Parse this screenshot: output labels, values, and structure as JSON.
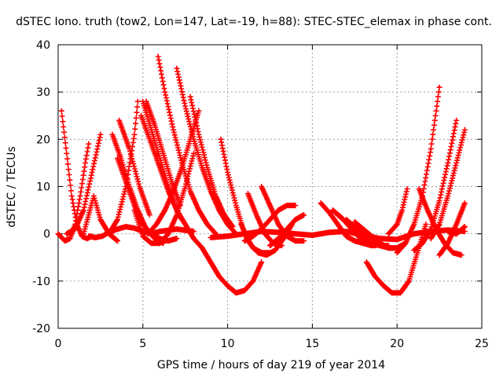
{
  "chart_data": {
    "type": "scatter",
    "title": "dSTEC Iono. truth (tow2, Lon=147, Lat=-19, h=88): STEC-STEC_elemax in phase cont.",
    "xlabel": "GPS time / hours of day 219 of year 2014",
    "ylabel": "dSTEC  / TECUs",
    "xlim": [
      0,
      25
    ],
    "ylim": [
      -20,
      40
    ],
    "x_ticks": [
      0,
      5,
      10,
      15,
      20,
      25
    ],
    "y_ticks": [
      -20,
      -10,
      0,
      10,
      20,
      30,
      40
    ],
    "x_tick_labels": [
      "0",
      "5",
      "10",
      "15",
      "20",
      "25"
    ],
    "y_tick_labels": [
      "-20",
      "-10",
      "0",
      "10",
      "20",
      "30",
      "40"
    ],
    "grid": true,
    "legend": "none",
    "marker": "plus",
    "color": "#ff0000",
    "series": [
      {
        "x": [
          0.2,
          0.5,
          0.8,
          1.1,
          1.4,
          1.7,
          2.0
        ],
        "y": [
          26,
          17,
          8,
          2,
          -0.5,
          -1,
          -0.5
        ]
      },
      {
        "x": [
          0.0,
          0.4,
          0.7,
          1.0,
          1.3,
          1.6,
          1.8
        ],
        "y": [
          0,
          -1.5,
          -1,
          2,
          8,
          15,
          19
        ]
      },
      {
        "x": [
          0.5,
          1.0,
          1.5,
          2.0,
          2.5
        ],
        "y": [
          0,
          1,
          5,
          13,
          21
        ]
      },
      {
        "x": [
          1.5,
          1.8,
          2.1,
          2.5,
          3.0,
          3.5
        ],
        "y": [
          0,
          4,
          8,
          3,
          0,
          -1.5
        ]
      },
      {
        "x": [
          1.8,
          2.2,
          2.6,
          3.0,
          3.5,
          4.0,
          4.5,
          5.0,
          5.5,
          6.0,
          7.0,
          8.0
        ],
        "y": [
          -0.5,
          -0.8,
          -0.5,
          0.3,
          1,
          1.5,
          1.2,
          0.5,
          0,
          0.5,
          1,
          0.5
        ]
      },
      {
        "x": [
          3.2,
          3.7,
          4.2,
          4.7,
          5.2,
          5.7,
          6.2
        ],
        "y": [
          21,
          16,
          10,
          5,
          1,
          -1,
          -2
        ]
      },
      {
        "x": [
          3.5,
          4.0,
          4.5,
          5.0,
          5.5,
          6.0,
          6.5,
          7.0
        ],
        "y": [
          16,
          11,
          6,
          2,
          0,
          -1,
          -1.5,
          -1
        ]
      },
      {
        "x": [
          3.0,
          3.5,
          4.0,
          4.5,
          4.7
        ],
        "y": [
          0,
          3,
          10,
          21,
          28
        ]
      },
      {
        "x": [
          3.6,
          4.2,
          4.8,
          5.4
        ],
        "y": [
          24,
          18,
          10,
          4
        ]
      },
      {
        "x": [
          4.9,
          5.5,
          6.0,
          6.5,
          7.0,
          7.5,
          8.0,
          8.5,
          9.0,
          9.5,
          10.0,
          10.5,
          11.0,
          11.5,
          12.0
        ],
        "y": [
          25,
          19,
          14,
          9,
          5,
          2,
          -1,
          -3,
          -6,
          -9,
          -11,
          -12.5,
          -12,
          -10,
          -6
        ]
      },
      {
        "x": [
          5.0,
          5.5,
          6.0,
          6.5,
          7.0,
          7.3
        ],
        "y": [
          28,
          22,
          16,
          10,
          5,
          3
        ]
      },
      {
        "x": [
          5.2,
          5.7,
          6.2,
          6.7,
          7.2
        ],
        "y": [
          28,
          23,
          17,
          11,
          6
        ]
      },
      {
        "x": [
          4.5,
          5.0,
          5.5,
          6.0,
          6.5,
          7.0,
          7.5,
          8.0
        ],
        "y": [
          5,
          -0.5,
          -2,
          -2,
          0,
          4,
          10,
          17
        ]
      },
      {
        "x": [
          5.3,
          5.8,
          6.3,
          6.8,
          7.3,
          7.8,
          8.3
        ],
        "y": [
          0,
          2,
          5,
          9,
          14,
          20,
          26
        ]
      },
      {
        "x": [
          5.9,
          6.3,
          6.8,
          7.3,
          7.8,
          8.3,
          8.8,
          9.3
        ],
        "y": [
          37.5,
          30,
          22,
          15,
          9,
          5,
          2,
          0
        ]
      },
      {
        "x": [
          7.0,
          7.5,
          8.0,
          8.5,
          9.0,
          9.5,
          10.0,
          10.5
        ],
        "y": [
          35,
          27,
          20,
          14,
          9,
          5,
          2,
          0
        ]
      },
      {
        "x": [
          7.8,
          8.3,
          8.8,
          9.3,
          9.8,
          10.3
        ],
        "y": [
          29,
          21,
          14,
          8,
          4,
          1.5
        ]
      },
      {
        "x": [
          9.6,
          10.0,
          10.5,
          11.0,
          11.5,
          12.0,
          12.5
        ],
        "y": [
          20,
          13,
          6,
          0,
          -3,
          -4,
          -4
        ]
      },
      {
        "x": [
          9.0,
          10.0,
          11.0,
          12.0,
          13.0,
          14.0,
          15.0,
          16.0,
          17.0,
          18.0,
          19.0,
          20.0,
          21.0,
          22.0,
          23.0,
          24.0
        ],
        "y": [
          -0.8,
          -0.5,
          0,
          0.5,
          0.3,
          0,
          -0.3,
          0.3,
          0.5,
          -0.3,
          -1,
          -1.2,
          0,
          0.5,
          0.8,
          0.5
        ]
      },
      {
        "x": [
          10.8,
          11.3,
          11.8,
          12.3,
          12.8,
          13.3,
          13.8
        ],
        "y": [
          2,
          -2,
          -4,
          -4.5,
          -3.5,
          -1,
          2
        ]
      },
      {
        "x": [
          11.2,
          11.7,
          12.2,
          12.7,
          13.2
        ],
        "y": [
          8.5,
          4,
          0,
          -2,
          -2.5
        ]
      },
      {
        "x": [
          12.0,
          12.5,
          13.0,
          13.5,
          14.0,
          14.5
        ],
        "y": [
          10,
          6,
          2,
          -0.5,
          -1.5,
          -1.5
        ]
      },
      {
        "x": [
          11.0,
          11.5,
          12.0,
          12.5,
          13.0,
          13.5,
          14.0
        ],
        "y": [
          -1.5,
          -0.5,
          1,
          3,
          5,
          6,
          6
        ]
      },
      {
        "x": [
          12.5,
          13.0,
          13.5,
          14.0,
          14.5
        ],
        "y": [
          -2.5,
          -1,
          1,
          3,
          4
        ]
      },
      {
        "x": [
          15.5,
          16.0,
          16.5,
          17.0,
          17.5,
          18.0,
          18.5,
          19.0
        ],
        "y": [
          6.5,
          4.5,
          2,
          -0.5,
          -1.5,
          -2,
          -2.5,
          -2.3
        ]
      },
      {
        "x": [
          16.2,
          16.7,
          17.2,
          17.7,
          18.2,
          18.7
        ],
        "y": [
          5,
          3.5,
          1.5,
          -0.5,
          -2,
          -2.5
        ]
      },
      {
        "x": [
          16.5,
          17.0,
          17.5,
          18.0,
          18.5,
          19.0,
          19.5
        ],
        "y": [
          4,
          2.5,
          0.5,
          -1,
          -2,
          -2.5,
          -2.5
        ]
      },
      {
        "x": [
          17.0,
          17.5,
          18.0,
          18.5,
          19.0,
          19.5,
          20.0
        ],
        "y": [
          3,
          1.5,
          0,
          -1.5,
          -2.5,
          -3,
          -3
        ]
      },
      {
        "x": [
          17.5,
          18.0,
          18.5,
          19.0,
          19.5,
          20.0,
          20.5
        ],
        "y": [
          2.5,
          1,
          -0.5,
          -2,
          -3,
          -3,
          -2
        ]
      },
      {
        "x": [
          18.2,
          18.7,
          19.2,
          19.7,
          20.2,
          20.7,
          21.2,
          21.7
        ],
        "y": [
          -6,
          -9,
          -11,
          -12.5,
          -12.5,
          -10,
          -4,
          2
        ]
      },
      {
        "x": [
          19.5,
          20.0,
          20.3,
          20.6
        ],
        "y": [
          0,
          2,
          5,
          9.5
        ]
      },
      {
        "x": [
          20.0,
          20.5,
          21.0,
          21.5,
          22.0,
          22.5
        ],
        "y": [
          -4,
          -2,
          2,
          8,
          18,
          31
        ]
      },
      {
        "x": [
          21.3,
          21.8,
          22.3,
          22.8,
          23.3,
          23.8
        ],
        "y": [
          9.5,
          5,
          1,
          -2,
          -4,
          -4.5
        ]
      },
      {
        "x": [
          21.0,
          21.5,
          22.0,
          22.5,
          23.0,
          23.5
        ],
        "y": [
          -3.5,
          -2,
          1,
          7,
          15,
          24
        ]
      },
      {
        "x": [
          22.5,
          23.0,
          23.5,
          24.0
        ],
        "y": [
          -4.5,
          -2,
          2,
          6.5
        ]
      },
      {
        "x": [
          22.0,
          22.5,
          23.0,
          23.5,
          24.0
        ],
        "y": [
          -1,
          2,
          8,
          15,
          22
        ]
      },
      {
        "x": [
          23.0,
          23.5,
          24.0
        ],
        "y": [
          0.5,
          0,
          1.5
        ]
      }
    ]
  }
}
